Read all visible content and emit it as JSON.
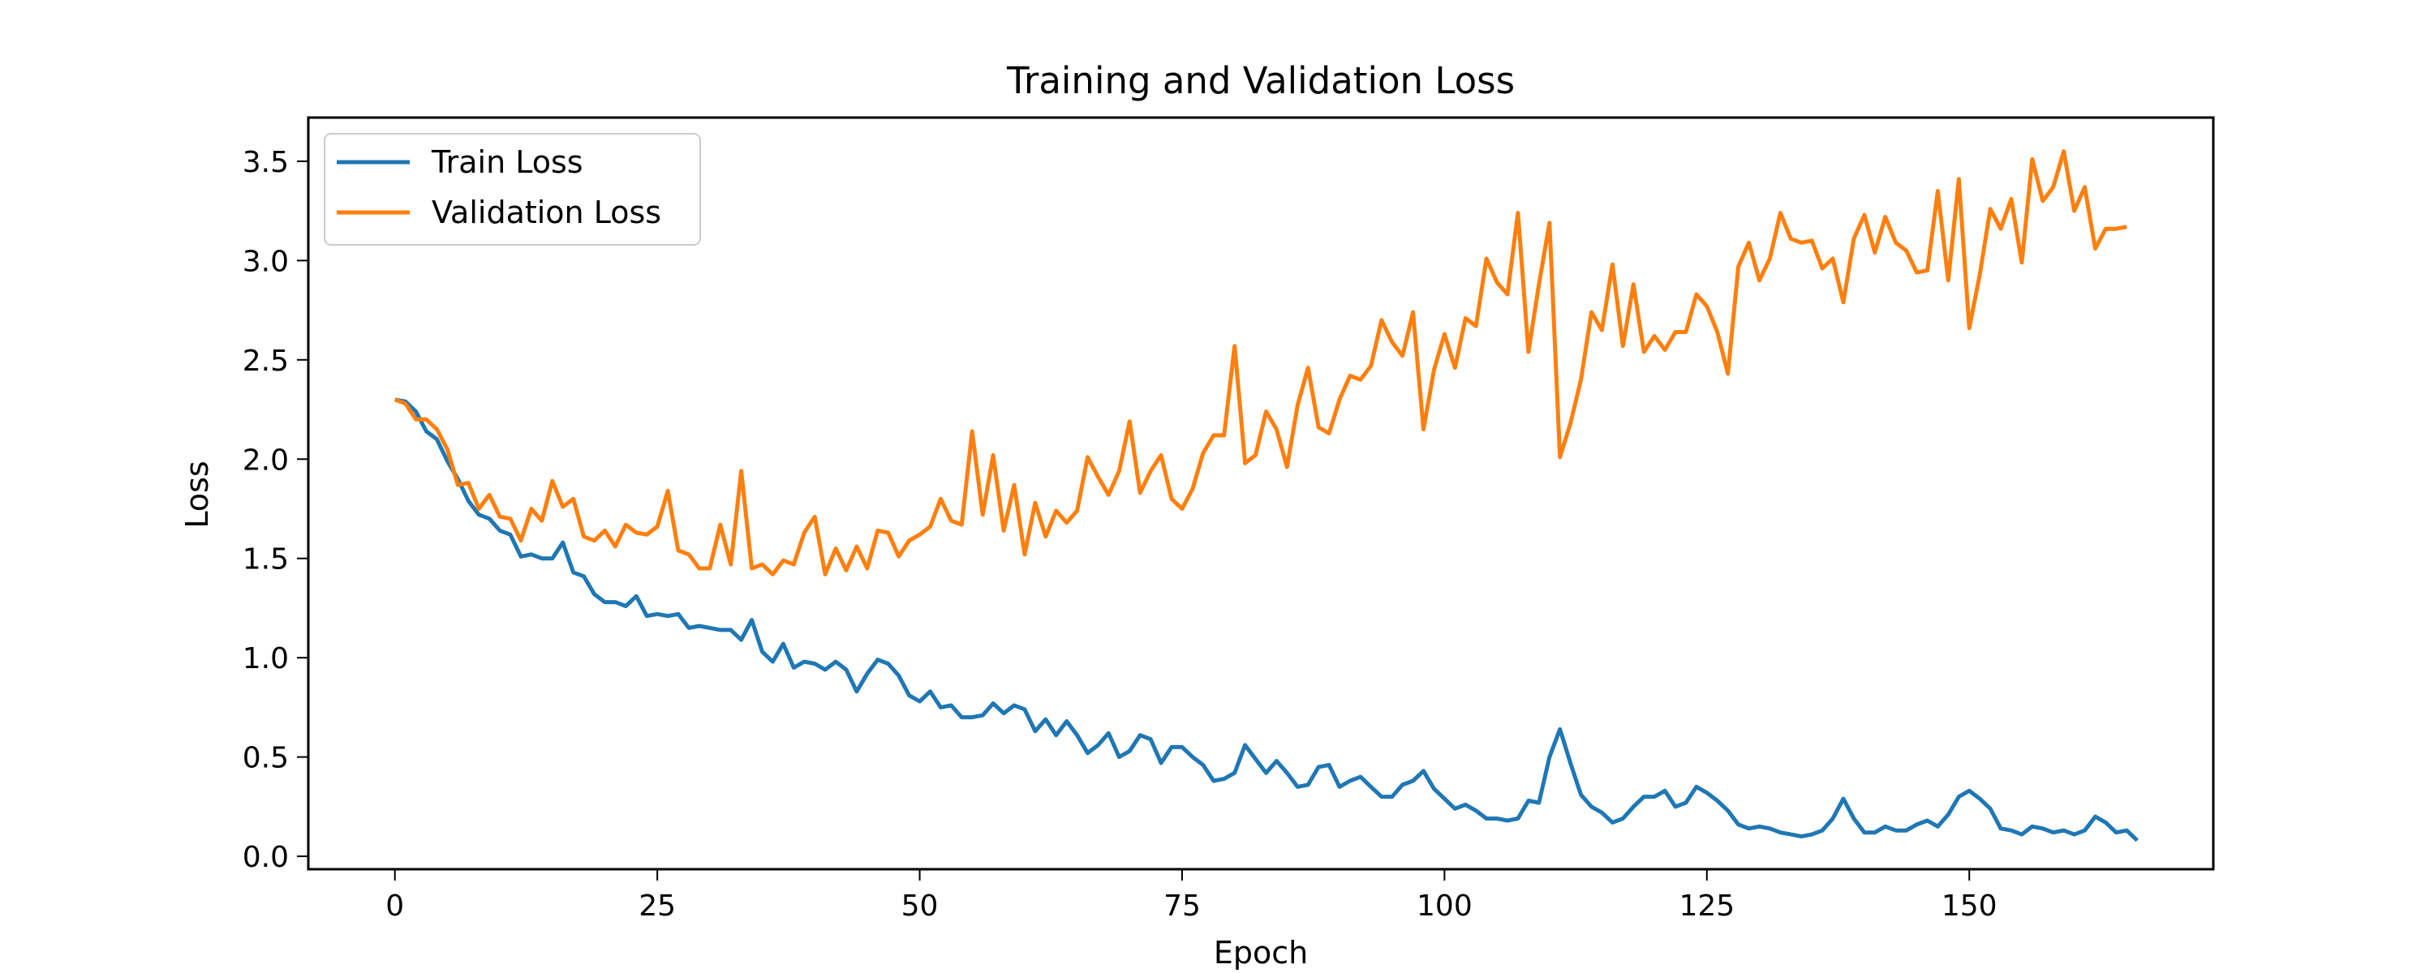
{
  "chart_data": {
    "type": "line",
    "title": "Training and Validation Loss",
    "xlabel": "Epoch",
    "ylabel": "Loss",
    "xlim": [
      -8.25,
      173.25
    ],
    "ylim": [
      -0.065,
      3.72
    ],
    "xticks": [
      0,
      25,
      50,
      75,
      100,
      125,
      150
    ],
    "yticks": [
      0.0,
      0.5,
      1.0,
      1.5,
      2.0,
      2.5,
      3.0,
      3.5
    ],
    "ytick_labels": [
      "0.0",
      "0.5",
      "1.0",
      "1.5",
      "2.0",
      "2.5",
      "3.0",
      "3.5"
    ],
    "grid": false,
    "legend_position": "upper-left",
    "series": [
      {
        "name": "Train Loss",
        "color": "#1f77b4",
        "values": [
          2.3,
          2.29,
          2.24,
          2.14,
          2.1,
          1.99,
          1.9,
          1.79,
          1.72,
          1.7,
          1.64,
          1.62,
          1.51,
          1.52,
          1.5,
          1.5,
          1.58,
          1.43,
          1.41,
          1.32,
          1.28,
          1.28,
          1.26,
          1.31,
          1.21,
          1.22,
          1.21,
          1.22,
          1.15,
          1.16,
          1.15,
          1.14,
          1.14,
          1.09,
          1.19,
          1.03,
          0.98,
          1.07,
          0.95,
          0.98,
          0.97,
          0.94,
          0.98,
          0.94,
          0.83,
          0.92,
          0.99,
          0.97,
          0.91,
          0.81,
          0.78,
          0.83,
          0.75,
          0.76,
          0.7,
          0.7,
          0.71,
          0.77,
          0.72,
          0.76,
          0.74,
          0.63,
          0.69,
          0.61,
          0.68,
          0.61,
          0.52,
          0.56,
          0.62,
          0.5,
          0.53,
          0.61,
          0.59,
          0.47,
          0.55,
          0.55,
          0.5,
          0.46,
          0.38,
          0.39,
          0.42,
          0.56,
          0.49,
          0.42,
          0.48,
          0.42,
          0.35,
          0.36,
          0.45,
          0.46,
          0.35,
          0.38,
          0.4,
          0.35,
          0.3,
          0.3,
          0.36,
          0.38,
          0.43,
          0.34,
          0.29,
          0.24,
          0.26,
          0.23,
          0.19,
          0.19,
          0.18,
          0.19,
          0.28,
          0.27,
          0.5,
          0.64,
          0.47,
          0.31,
          0.25,
          0.22,
          0.17,
          0.19,
          0.25,
          0.3,
          0.3,
          0.33,
          0.25,
          0.27,
          0.35,
          0.32,
          0.28,
          0.23,
          0.16,
          0.14,
          0.15,
          0.14,
          0.12,
          0.11,
          0.1,
          0.11,
          0.13,
          0.19,
          0.29,
          0.19,
          0.12,
          0.12,
          0.15,
          0.13,
          0.13,
          0.16,
          0.18,
          0.15,
          0.21,
          0.3,
          0.33,
          0.29,
          0.24,
          0.14,
          0.13,
          0.11,
          0.15,
          0.14,
          0.12,
          0.13,
          0.11,
          0.13,
          0.2,
          0.17,
          0.12,
          0.13,
          0.08
        ]
      },
      {
        "name": "Validation Loss",
        "color": "#ff7f0e",
        "values": [
          2.3,
          2.28,
          2.2,
          2.2,
          2.15,
          2.05,
          1.87,
          1.88,
          1.75,
          1.82,
          1.71,
          1.7,
          1.59,
          1.75,
          1.69,
          1.89,
          1.76,
          1.8,
          1.61,
          1.59,
          1.64,
          1.56,
          1.67,
          1.63,
          1.62,
          1.66,
          1.84,
          1.54,
          1.52,
          1.45,
          1.45,
          1.67,
          1.47,
          1.94,
          1.45,
          1.47,
          1.42,
          1.49,
          1.47,
          1.63,
          1.71,
          1.42,
          1.55,
          1.44,
          1.56,
          1.45,
          1.64,
          1.63,
          1.51,
          1.59,
          1.62,
          1.66,
          1.8,
          1.69,
          1.67,
          2.14,
          1.72,
          2.02,
          1.64,
          1.87,
          1.52,
          1.78,
          1.61,
          1.74,
          1.68,
          1.74,
          2.01,
          1.91,
          1.82,
          1.94,
          2.19,
          1.83,
          1.94,
          2.02,
          1.8,
          1.75,
          1.85,
          2.03,
          2.12,
          2.12,
          2.57,
          1.98,
          2.02,
          2.24,
          2.15,
          1.96,
          2.27,
          2.46,
          2.16,
          2.13,
          2.3,
          2.42,
          2.4,
          2.47,
          2.7,
          2.59,
          2.52,
          2.74,
          2.15,
          2.45,
          2.63,
          2.46,
          2.71,
          2.67,
          3.01,
          2.89,
          2.83,
          3.24,
          2.54,
          2.88,
          3.19,
          2.01,
          2.18,
          2.4,
          2.74,
          2.65,
          2.98,
          2.57,
          2.88,
          2.54,
          2.62,
          2.55,
          2.64,
          2.64,
          2.83,
          2.77,
          2.64,
          2.43,
          2.97,
          3.09,
          2.9,
          3.01,
          3.24,
          3.11,
          3.09,
          3.1,
          2.96,
          3.01,
          2.79,
          3.11,
          3.23,
          3.04,
          3.22,
          3.09,
          3.05,
          2.94,
          2.95,
          3.35,
          2.9,
          3.41,
          2.66,
          2.93,
          3.26,
          3.16,
          3.31,
          2.99,
          3.51,
          3.3,
          3.37,
          3.55,
          3.25,
          3.37,
          3.06,
          3.16,
          3.16,
          3.17
        ]
      }
    ]
  }
}
